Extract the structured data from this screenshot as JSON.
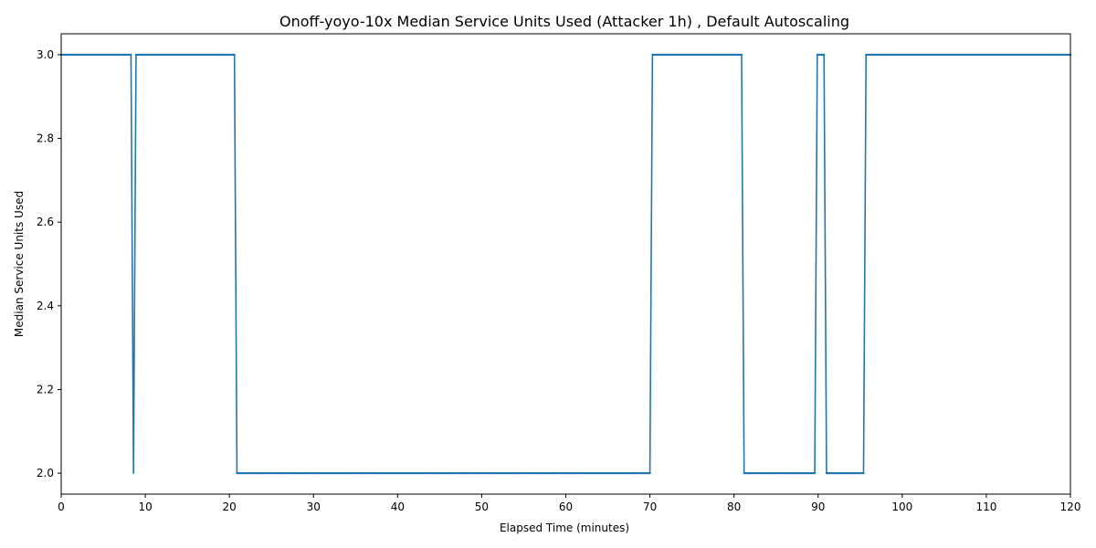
{
  "chart_data": {
    "type": "line",
    "title": "Onoff-yoyo-10x Median Service Units Used (Attacker 1h) , Default Autoscaling",
    "xlabel": "Elapsed Time (minutes)",
    "ylabel": "Median Service Units Used",
    "xlim": [
      0,
      120
    ],
    "ylim": [
      1.95,
      3.05
    ],
    "grid": false,
    "color": "#1f77b4",
    "xticks": [
      0,
      10,
      20,
      30,
      40,
      50,
      60,
      70,
      80,
      90,
      100,
      110,
      120
    ],
    "yticks": [
      2.0,
      2.2,
      2.4,
      2.6,
      2.8,
      3.0
    ],
    "x": [
      0,
      8.3,
      8.6,
      8.9,
      20.6,
      20.9,
      70.0,
      70.3,
      80.9,
      81.2,
      89.6,
      89.9,
      90.7,
      91.0,
      95.4,
      95.7,
      120
    ],
    "y": [
      3,
      3,
      2,
      3,
      3,
      2,
      2,
      3,
      3,
      2,
      2,
      3,
      3,
      2,
      2,
      3,
      3
    ]
  }
}
